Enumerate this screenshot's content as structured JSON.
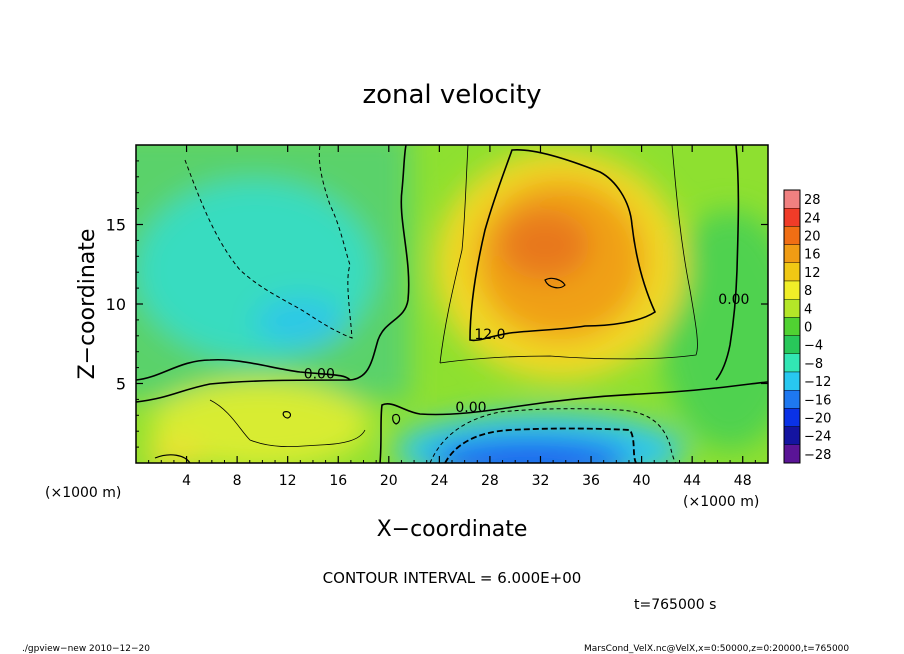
{
  "chart_data": {
    "type": "heatmap",
    "title": "zonal velocity",
    "xlabel": "X−coordinate",
    "ylabel": "Z−coordinate",
    "x_unit_label": "(×1000 m)",
    "y_unit_label": "(×1000 m)",
    "xlim": [
      0,
      50
    ],
    "ylim": [
      0,
      20
    ],
    "x_ticks": [
      "4",
      "8",
      "12",
      "16",
      "20",
      "24",
      "28",
      "32",
      "36",
      "40",
      "44",
      "48"
    ],
    "x_tick_values": [
      4,
      8,
      12,
      16,
      20,
      24,
      28,
      32,
      36,
      40,
      44,
      48
    ],
    "y_ticks": [
      "5",
      "10",
      "15"
    ],
    "y_tick_values": [
      5,
      10,
      15
    ],
    "contour_interval_text": "CONTOUR INTERVAL = 6.000E+00",
    "contour_labels": [
      {
        "text": "0.00",
        "x": 14.5,
        "y": 5.5
      },
      {
        "text": "0.00",
        "x": 26.5,
        "y": 3.4
      },
      {
        "text": "0.00",
        "x": 47.3,
        "y": 10.2
      },
      {
        "text": "12.0",
        "x": 28.0,
        "y": 8.0
      }
    ],
    "colorbar": {
      "levels": [
        "28",
        "24",
        "20",
        "16",
        "12",
        "8",
        "4",
        "0",
        "−4",
        "−8",
        "−12",
        "−16",
        "−20",
        "−24",
        "−28"
      ],
      "colors": [
        "#f08080",
        "#f03c28",
        "#f06e14",
        "#f09c14",
        "#f0c814",
        "#f0ee28",
        "#b4e628",
        "#50d232",
        "#28c85a",
        "#32e6b4",
        "#28c8f0",
        "#1e78f0",
        "#0a32e6",
        "#1414a0",
        "#5a1496"
      ]
    },
    "field_description_values": {
      "max_positive": 16,
      "min_negative": -21
    },
    "time_text": "t=765000 s",
    "footer_left": "./gpview−new   2010−12−20",
    "footer_right": "MarsCond_VelX.nc@VelX,x=0:50000,z=0:20000,t=765000"
  }
}
